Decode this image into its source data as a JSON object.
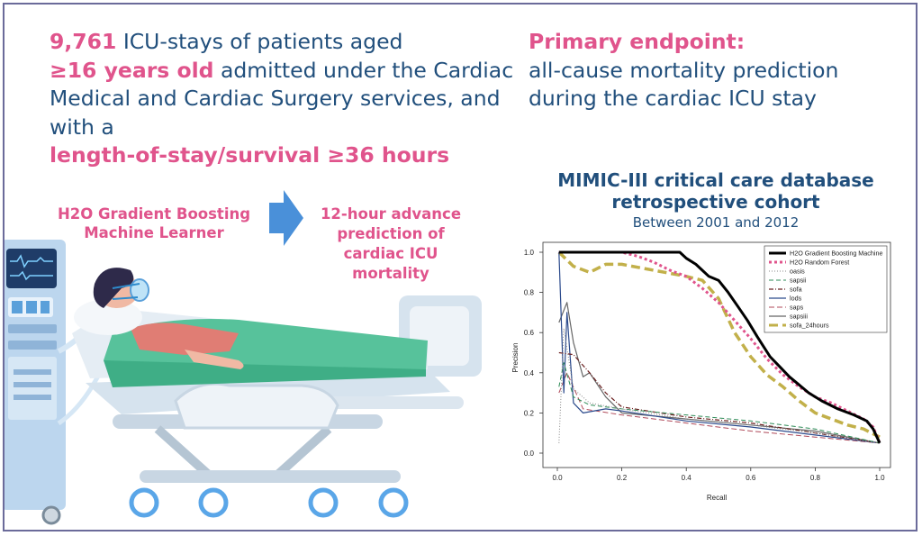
{
  "cohort": {
    "count": "9,761",
    "text1": " ICU-stays of patients aged",
    "age": "≥16 years old",
    "text2": " admitted under the Cardiac Medical and Cardiac Surgery services, and with a",
    "los": "length-of-stay/survival ≥36 hours"
  },
  "endpoint": {
    "title": "Primary endpoint:",
    "text": "all-cause mortality prediction during the cardiac ICU stay"
  },
  "model": {
    "label": "H2O Gradient Boosting Machine Learner"
  },
  "prediction": {
    "label": "12-hour advance prediction of cardiac ICU mortality"
  },
  "database": {
    "title": "MIMIC-III critical care database retrospective cohort",
    "subtitle": "Between 2001 and 2012"
  },
  "colors": {
    "pink": "#e0548c",
    "navy": "#214f7c",
    "arrow": "#4a90d9"
  },
  "icons": {
    "arrow": "right-arrow-icon",
    "illustration": "icu-patient-bed-illustration"
  },
  "chart_data": {
    "type": "line",
    "xlabel": "Recall",
    "ylabel": "Precision",
    "xlim": [
      0,
      1
    ],
    "ylim": [
      0,
      1
    ],
    "xticks": [
      "0.0",
      "0.2",
      "0.4",
      "0.6",
      "0.8",
      "1.0"
    ],
    "yticks": [
      "0.0",
      "0.2",
      "0.4",
      "0.6",
      "0.8",
      "1.0"
    ],
    "legend_position": "top-right",
    "series": [
      {
        "name": "H2O Gradient Boosting Machine",
        "color": "#000000",
        "dash": "",
        "width": 3,
        "points": [
          [
            0.005,
            1.0
          ],
          [
            0.38,
            1.0
          ],
          [
            0.4,
            0.97
          ],
          [
            0.43,
            0.94
          ],
          [
            0.45,
            0.91
          ],
          [
            0.47,
            0.88
          ],
          [
            0.5,
            0.86
          ],
          [
            0.53,
            0.8
          ],
          [
            0.56,
            0.73
          ],
          [
            0.59,
            0.66
          ],
          [
            0.62,
            0.58
          ],
          [
            0.64,
            0.53
          ],
          [
            0.66,
            0.48
          ],
          [
            0.69,
            0.43
          ],
          [
            0.72,
            0.38
          ],
          [
            0.75,
            0.34
          ],
          [
            0.78,
            0.3
          ],
          [
            0.82,
            0.26
          ],
          [
            0.87,
            0.22
          ],
          [
            0.92,
            0.19
          ],
          [
            0.96,
            0.16
          ],
          [
            0.98,
            0.12
          ],
          [
            1.0,
            0.05
          ]
        ]
      },
      {
        "name": "H2O Random Forest",
        "color": "#e0548c",
        "dash": "3,3",
        "width": 3,
        "points": [
          [
            0.005,
            1.0
          ],
          [
            0.2,
            1.0
          ],
          [
            0.25,
            0.98
          ],
          [
            0.3,
            0.95
          ],
          [
            0.35,
            0.91
          ],
          [
            0.4,
            0.88
          ],
          [
            0.45,
            0.82
          ],
          [
            0.5,
            0.75
          ],
          [
            0.55,
            0.66
          ],
          [
            0.6,
            0.57
          ],
          [
            0.65,
            0.47
          ],
          [
            0.7,
            0.39
          ],
          [
            0.75,
            0.33
          ],
          [
            0.8,
            0.28
          ],
          [
            0.85,
            0.25
          ],
          [
            0.9,
            0.21
          ],
          [
            0.95,
            0.17
          ],
          [
            0.98,
            0.13
          ],
          [
            1.0,
            0.05
          ]
        ]
      },
      {
        "name": "oasis",
        "color": "#888888",
        "dash": "1,2",
        "width": 1,
        "points": [
          [
            0.005,
            0.05
          ],
          [
            0.02,
            0.62
          ],
          [
            0.05,
            0.32
          ],
          [
            0.1,
            0.25
          ],
          [
            0.2,
            0.22
          ],
          [
            0.4,
            0.17
          ],
          [
            0.6,
            0.14
          ],
          [
            0.8,
            0.1
          ],
          [
            1.0,
            0.05
          ]
        ]
      },
      {
        "name": "sapsii",
        "color": "#2e8b57",
        "dash": "5,3",
        "width": 1,
        "points": [
          [
            0.005,
            0.33
          ],
          [
            0.02,
            0.45
          ],
          [
            0.05,
            0.28
          ],
          [
            0.1,
            0.24
          ],
          [
            0.2,
            0.22
          ],
          [
            0.4,
            0.19
          ],
          [
            0.6,
            0.16
          ],
          [
            0.8,
            0.12
          ],
          [
            1.0,
            0.05
          ]
        ]
      },
      {
        "name": "sofa",
        "color": "#6b2020",
        "dash": "5,2,1,2",
        "width": 1.2,
        "points": [
          [
            0.005,
            0.5
          ],
          [
            0.05,
            0.49
          ],
          [
            0.1,
            0.4
          ],
          [
            0.15,
            0.3
          ],
          [
            0.2,
            0.23
          ],
          [
            0.4,
            0.18
          ],
          [
            0.6,
            0.15
          ],
          [
            0.8,
            0.1
          ],
          [
            1.0,
            0.05
          ]
        ]
      },
      {
        "name": "lods",
        "color": "#2b4a8c",
        "dash": "",
        "width": 1.2,
        "points": [
          [
            0.005,
            1.0
          ],
          [
            0.02,
            0.3
          ],
          [
            0.03,
            0.7
          ],
          [
            0.05,
            0.25
          ],
          [
            0.08,
            0.2
          ],
          [
            0.15,
            0.22
          ],
          [
            0.2,
            0.21
          ],
          [
            0.4,
            0.16
          ],
          [
            0.6,
            0.13
          ],
          [
            0.8,
            0.09
          ],
          [
            1.0,
            0.05
          ]
        ]
      },
      {
        "name": "saps",
        "color": "#b04a5a",
        "dash": "6,3",
        "width": 1,
        "points": [
          [
            0.005,
            0.3
          ],
          [
            0.03,
            0.4
          ],
          [
            0.08,
            0.22
          ],
          [
            0.2,
            0.19
          ],
          [
            0.4,
            0.15
          ],
          [
            0.6,
            0.11
          ],
          [
            0.8,
            0.08
          ],
          [
            1.0,
            0.05
          ]
        ]
      },
      {
        "name": "sapsiii",
        "color": "#666666",
        "dash": "",
        "width": 1.2,
        "points": [
          [
            0.005,
            0.65
          ],
          [
            0.03,
            0.75
          ],
          [
            0.05,
            0.55
          ],
          [
            0.08,
            0.38
          ],
          [
            0.1,
            0.4
          ],
          [
            0.15,
            0.28
          ],
          [
            0.2,
            0.2
          ],
          [
            0.4,
            0.17
          ],
          [
            0.6,
            0.14
          ],
          [
            0.8,
            0.11
          ],
          [
            1.0,
            0.05
          ]
        ]
      },
      {
        "name": "sofa_24hours",
        "color": "#c2b04a",
        "dash": "10,5",
        "width": 3.5,
        "points": [
          [
            0.005,
            1.0
          ],
          [
            0.05,
            0.93
          ],
          [
            0.1,
            0.9
          ],
          [
            0.15,
            0.94
          ],
          [
            0.2,
            0.94
          ],
          [
            0.3,
            0.91
          ],
          [
            0.4,
            0.88
          ],
          [
            0.45,
            0.86
          ],
          [
            0.5,
            0.77
          ],
          [
            0.55,
            0.6
          ],
          [
            0.6,
            0.48
          ],
          [
            0.65,
            0.39
          ],
          [
            0.7,
            0.33
          ],
          [
            0.75,
            0.26
          ],
          [
            0.8,
            0.2
          ],
          [
            0.85,
            0.17
          ],
          [
            0.9,
            0.14
          ],
          [
            0.95,
            0.12
          ],
          [
            1.0,
            0.08
          ]
        ]
      }
    ]
  }
}
